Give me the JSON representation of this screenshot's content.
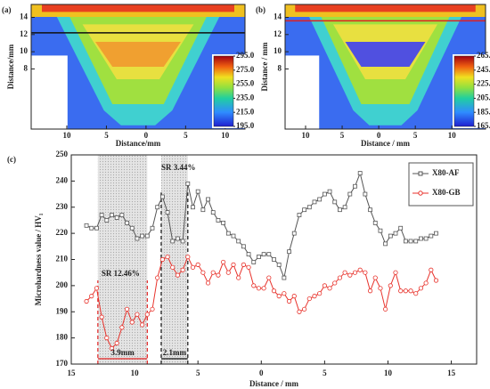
{
  "chart_data": [
    {
      "type": "heatmap",
      "panel_label": "(a)",
      "xlabel": "Distance/mm",
      "ylabel": "Distance/mm",
      "xlim": [
        -14.5,
        12.5
      ],
      "ylim": [
        1,
        15.5
      ],
      "xticks": [
        {
          "value": -10,
          "label": "10"
        },
        {
          "value": -5,
          "label": "5"
        },
        {
          "value": 0,
          "label": "0"
        },
        {
          "value": 5,
          "label": "5"
        },
        {
          "value": 10,
          "label": "10"
        }
      ],
      "yticks": [
        8,
        10,
        12,
        14
      ],
      "hline": 12.2,
      "hline_color": "#111111",
      "colorbar_lim": [
        195,
        295
      ],
      "colorbar_ticks": [
        {
          "value": 295,
          "label": "295.0"
        },
        {
          "value": 275,
          "label": "275.0"
        },
        {
          "value": 255,
          "label": "255.0"
        },
        {
          "value": 235,
          "label": "235.0"
        },
        {
          "value": 215,
          "label": "215.0"
        },
        {
          "value": 195,
          "label": "195.0"
        }
      ]
    },
    {
      "type": "heatmap",
      "panel_label": "(b)",
      "xlabel": "Distance / mm",
      "ylabel": "Distance / mm",
      "xlim": [
        -12.8,
        14.6
      ],
      "ylim": [
        1,
        15.5
      ],
      "xticks": [
        {
          "value": -10,
          "label": "10"
        },
        {
          "value": -5,
          "label": "5"
        },
        {
          "value": 0,
          "label": "0"
        },
        {
          "value": 5,
          "label": "5"
        },
        {
          "value": 10,
          "label": "10"
        }
      ],
      "yticks": [
        8,
        10,
        12,
        14
      ],
      "hline": 13.6,
      "hline_color": "#e02020",
      "colorbar_lim": [
        165,
        265
      ],
      "colorbar_ticks": [
        {
          "value": 265,
          "label": "265.0"
        },
        {
          "value": 245,
          "label": "245.0"
        },
        {
          "value": 225,
          "label": "225.0"
        },
        {
          "value": 205,
          "label": "205.0"
        },
        {
          "value": 185,
          "label": "185.0"
        },
        {
          "value": 165,
          "label": "165.0"
        }
      ]
    },
    {
      "type": "line",
      "panel_label": "(c)",
      "xlabel": "Distance / mm",
      "ylabel": "Microhardness value / HV₁",
      "xlim": [
        -15,
        17
      ],
      "ylim": [
        170,
        250
      ],
      "xticks": [
        {
          "value": -15,
          "label": "15"
        },
        {
          "value": -10,
          "label": "10"
        },
        {
          "value": -5,
          "label": "5"
        },
        0,
        5,
        10,
        15
      ],
      "yticks": [
        170,
        180,
        190,
        200,
        210,
        220,
        230,
        240,
        250
      ],
      "legend": "upper right",
      "highlight_ranges": [
        [
          -12.9,
          -9.0
        ],
        [
          -7.9,
          -5.8
        ]
      ],
      "annotations": [
        "SR 3.44%",
        "SR 12.46%",
        "3.9mm",
        "2.1mm"
      ],
      "x": [
        -13.8,
        -13.4,
        -13.0,
        -12.6,
        -12.2,
        -11.8,
        -11.4,
        -11.0,
        -10.6,
        -10.2,
        -9.8,
        -9.4,
        -9.0,
        -8.6,
        -8.2,
        -7.8,
        -7.4,
        -7.0,
        -6.6,
        -6.2,
        -5.8,
        -5.4,
        -5.0,
        -4.6,
        -4.2,
        -3.8,
        -3.4,
        -3.0,
        -2.6,
        -2.2,
        -1.8,
        -1.4,
        -1.0,
        -0.6,
        -0.2,
        0.2,
        0.6,
        1.0,
        1.4,
        1.8,
        2.2,
        2.6,
        3.0,
        3.4,
        3.8,
        4.2,
        4.6,
        5.0,
        5.4,
        5.8,
        6.2,
        6.6,
        7.0,
        7.4,
        7.8,
        8.2,
        8.6,
        9.0,
        9.4,
        9.8,
        10.2,
        10.6,
        11.0,
        11.4,
        11.8,
        12.2,
        12.6,
        13.0,
        13.4,
        13.8
      ],
      "series": [
        {
          "name": "X80-AF",
          "color": "#555555",
          "marker": "square",
          "values": [
            223,
            222,
            222,
            227,
            225,
            227,
            226,
            227,
            224,
            222,
            218,
            219,
            219,
            222,
            230,
            234,
            228,
            217,
            218,
            217,
            239,
            230,
            236,
            229,
            233,
            228,
            225,
            224,
            220,
            219,
            217,
            215,
            212,
            209,
            211,
            212,
            212,
            210,
            208,
            203,
            213,
            220,
            227,
            229,
            230,
            232,
            233,
            235,
            236,
            232,
            229,
            230,
            235,
            238,
            243,
            235,
            229,
            224,
            221,
            216,
            219,
            220,
            222,
            217,
            217,
            217,
            218,
            218,
            219,
            220
          ]
        },
        {
          "name": "X80-GB",
          "color": "#e8322b",
          "marker": "circle",
          "values": [
            194,
            196,
            199,
            188,
            180,
            176,
            178,
            184,
            191,
            186,
            189,
            185,
            189,
            191,
            203,
            210,
            211,
            207,
            204,
            206,
            211,
            207,
            208,
            205,
            201,
            205,
            204,
            209,
            205,
            208,
            203,
            208,
            207,
            200,
            199,
            199,
            203,
            198,
            196,
            197,
            194,
            196,
            190,
            191,
            195,
            196,
            197,
            200,
            199,
            201,
            203,
            205,
            204,
            205,
            206,
            205,
            198,
            203,
            199,
            191,
            200,
            205,
            198,
            198,
            198,
            197,
            199,
            201,
            206,
            202
          ]
        }
      ]
    }
  ]
}
